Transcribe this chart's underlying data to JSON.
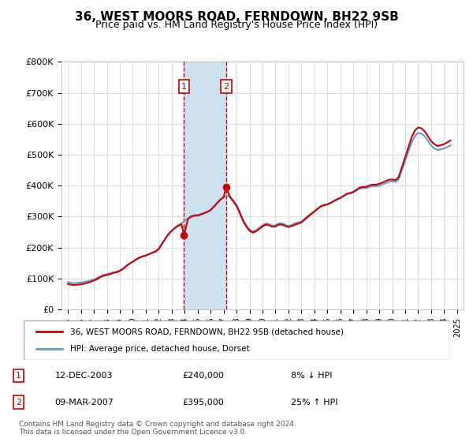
{
  "title": "36, WEST MOORS ROAD, FERNDOWN, BH22 9SB",
  "subtitle": "Price paid vs. HM Land Registry's House Price Index (HPI)",
  "legend_line1": "36, WEST MOORS ROAD, FERNDOWN, BH22 9SB (detached house)",
  "legend_line2": "HPI: Average price, detached house, Dorset",
  "footnote1": "Contains HM Land Registry data © Crown copyright and database right 2024.",
  "footnote2": "This data is licensed under the Open Government Licence v3.0.",
  "table_rows": [
    {
      "num": "1",
      "date": "12-DEC-2003",
      "price": "£240,000",
      "hpi": "8% ↓ HPI"
    },
    {
      "num": "2",
      "date": "09-MAR-2007",
      "price": "£395,000",
      "hpi": "25% ↑ HPI"
    }
  ],
  "sale1_x": 2003.95,
  "sale1_y": 240000,
  "sale2_x": 2007.2,
  "sale2_y": 395000,
  "shade_x1": 2003.95,
  "shade_x2": 2007.2,
  "red_color": "#cc0000",
  "blue_color": "#6699cc",
  "shade_color": "#cce0f0",
  "ylim": [
    0,
    800000
  ],
  "xlim": [
    1994.5,
    2025.5
  ],
  "yticks": [
    0,
    100000,
    200000,
    300000,
    400000,
    500000,
    600000,
    700000,
    800000
  ],
  "ytick_labels": [
    "£0",
    "£100K",
    "£200K",
    "£300K",
    "£400K",
    "£500K",
    "£600K",
    "£700K",
    "£800K"
  ],
  "xticks": [
    1995,
    1996,
    1997,
    1998,
    1999,
    2000,
    2001,
    2002,
    2003,
    2004,
    2005,
    2006,
    2007,
    2008,
    2009,
    2010,
    2011,
    2012,
    2013,
    2014,
    2015,
    2016,
    2017,
    2018,
    2019,
    2020,
    2021,
    2022,
    2023,
    2024,
    2025
  ],
  "hpi_data": {
    "years": [
      1995.0,
      1995.25,
      1995.5,
      1995.75,
      1996.0,
      1996.25,
      1996.5,
      1996.75,
      1997.0,
      1997.25,
      1997.5,
      1997.75,
      1998.0,
      1998.25,
      1998.5,
      1998.75,
      1999.0,
      1999.25,
      1999.5,
      1999.75,
      2000.0,
      2000.25,
      2000.5,
      2000.75,
      2001.0,
      2001.25,
      2001.5,
      2001.75,
      2002.0,
      2002.25,
      2002.5,
      2002.75,
      2003.0,
      2003.25,
      2003.5,
      2003.75,
      2004.0,
      2004.25,
      2004.5,
      2004.75,
      2005.0,
      2005.25,
      2005.5,
      2005.75,
      2006.0,
      2006.25,
      2006.5,
      2006.75,
      2007.0,
      2007.25,
      2007.5,
      2007.75,
      2008.0,
      2008.25,
      2008.5,
      2008.75,
      2009.0,
      2009.25,
      2009.5,
      2009.75,
      2010.0,
      2010.25,
      2010.5,
      2010.75,
      2011.0,
      2011.25,
      2011.5,
      2011.75,
      2012.0,
      2012.25,
      2012.5,
      2012.75,
      2013.0,
      2013.25,
      2013.5,
      2013.75,
      2014.0,
      2014.25,
      2014.5,
      2014.75,
      2015.0,
      2015.25,
      2015.5,
      2015.75,
      2016.0,
      2016.25,
      2016.5,
      2016.75,
      2017.0,
      2017.25,
      2017.5,
      2017.75,
      2018.0,
      2018.25,
      2018.5,
      2018.75,
      2019.0,
      2019.25,
      2019.5,
      2019.75,
      2020.0,
      2020.25,
      2020.5,
      2020.75,
      2021.0,
      2021.25,
      2021.5,
      2021.75,
      2022.0,
      2022.25,
      2022.5,
      2022.75,
      2023.0,
      2023.25,
      2023.5,
      2023.75,
      2024.0,
      2024.25,
      2024.5
    ],
    "values": [
      88000,
      86000,
      85000,
      86000,
      87000,
      89000,
      91000,
      94000,
      97000,
      102000,
      107000,
      112000,
      114000,
      117000,
      120000,
      122000,
      126000,
      133000,
      141000,
      149000,
      155000,
      162000,
      168000,
      172000,
      175000,
      179000,
      184000,
      188000,
      196000,
      212000,
      228000,
      244000,
      255000,
      265000,
      272000,
      278000,
      286000,
      295000,
      302000,
      305000,
      305000,
      308000,
      312000,
      316000,
      322000,
      332000,
      343000,
      354000,
      362000,
      368000,
      365000,
      352000,
      338000,
      315000,
      290000,
      272000,
      258000,
      252000,
      256000,
      264000,
      272000,
      278000,
      276000,
      271000,
      272000,
      278000,
      278000,
      274000,
      270000,
      273000,
      278000,
      281000,
      285000,
      293000,
      302000,
      310000,
      318000,
      326000,
      334000,
      338000,
      340000,
      344000,
      350000,
      356000,
      360000,
      366000,
      372000,
      374000,
      378000,
      384000,
      390000,
      392000,
      392000,
      396000,
      398000,
      398000,
      400000,
      404000,
      408000,
      412000,
      414000,
      412000,
      420000,
      450000,
      480000,
      510000,
      540000,
      560000,
      570000,
      568000,
      560000,
      545000,
      530000,
      520000,
      515000,
      518000,
      520000,
      525000,
      530000
    ]
  },
  "red_line_data": {
    "years": [
      1995.0,
      1995.25,
      1995.5,
      1995.75,
      1996.0,
      1996.25,
      1996.5,
      1996.75,
      1997.0,
      1997.25,
      1997.5,
      1997.75,
      1998.0,
      1998.25,
      1998.5,
      1998.75,
      1999.0,
      1999.25,
      1999.5,
      1999.75,
      2000.0,
      2000.25,
      2000.5,
      2000.75,
      2001.0,
      2001.25,
      2001.5,
      2001.75,
      2002.0,
      2002.25,
      2002.5,
      2002.75,
      2003.0,
      2003.25,
      2003.5,
      2003.75,
      2003.95,
      2004.25,
      2004.5,
      2004.75,
      2005.0,
      2005.25,
      2005.5,
      2005.75,
      2006.0,
      2006.25,
      2006.5,
      2006.75,
      2007.0,
      2007.2,
      2007.5,
      2007.75,
      2008.0,
      2008.25,
      2008.5,
      2008.75,
      2009.0,
      2009.25,
      2009.5,
      2009.75,
      2010.0,
      2010.25,
      2010.5,
      2010.75,
      2011.0,
      2011.25,
      2011.5,
      2011.75,
      2012.0,
      2012.25,
      2012.5,
      2012.75,
      2013.0,
      2013.25,
      2013.5,
      2013.75,
      2014.0,
      2014.25,
      2014.5,
      2014.75,
      2015.0,
      2015.25,
      2015.5,
      2015.75,
      2016.0,
      2016.25,
      2016.5,
      2016.75,
      2017.0,
      2017.25,
      2017.5,
      2017.75,
      2018.0,
      2018.25,
      2018.5,
      2018.75,
      2019.0,
      2019.25,
      2019.5,
      2019.75,
      2020.0,
      2020.25,
      2020.5,
      2020.75,
      2021.0,
      2021.25,
      2021.5,
      2021.75,
      2022.0,
      2022.25,
      2022.5,
      2022.75,
      2023.0,
      2023.25,
      2023.5,
      2023.75,
      2024.0,
      2024.25,
      2024.5
    ],
    "values": [
      82000,
      80000,
      79000,
      80000,
      81000,
      83000,
      86000,
      89000,
      93000,
      98000,
      104000,
      109000,
      111000,
      114000,
      118000,
      120000,
      124000,
      131000,
      140000,
      148000,
      154000,
      161000,
      167000,
      171000,
      174000,
      178000,
      183000,
      187000,
      195000,
      212000,
      228000,
      243000,
      254000,
      263000,
      270000,
      276000,
      240000,
      292000,
      300000,
      303000,
      303000,
      307000,
      311000,
      315000,
      321000,
      332000,
      344000,
      355000,
      363000,
      395000,
      362000,
      349000,
      334000,
      311000,
      286000,
      268000,
      254000,
      248000,
      252000,
      260000,
      268000,
      274000,
      272000,
      267000,
      268000,
      274000,
      274000,
      270000,
      266000,
      269000,
      274000,
      277000,
      281000,
      290000,
      299000,
      308000,
      316000,
      325000,
      333000,
      337000,
      339000,
      344000,
      350000,
      356000,
      360000,
      367000,
      374000,
      376000,
      380000,
      387000,
      394000,
      396000,
      396000,
      401000,
      403000,
      403000,
      406000,
      410000,
      415000,
      419000,
      420000,
      418000,
      428000,
      460000,
      492000,
      524000,
      556000,
      578000,
      588000,
      585000,
      576000,
      560000,
      544000,
      534000,
      528000,
      531000,
      534000,
      540000,
      546000
    ]
  }
}
